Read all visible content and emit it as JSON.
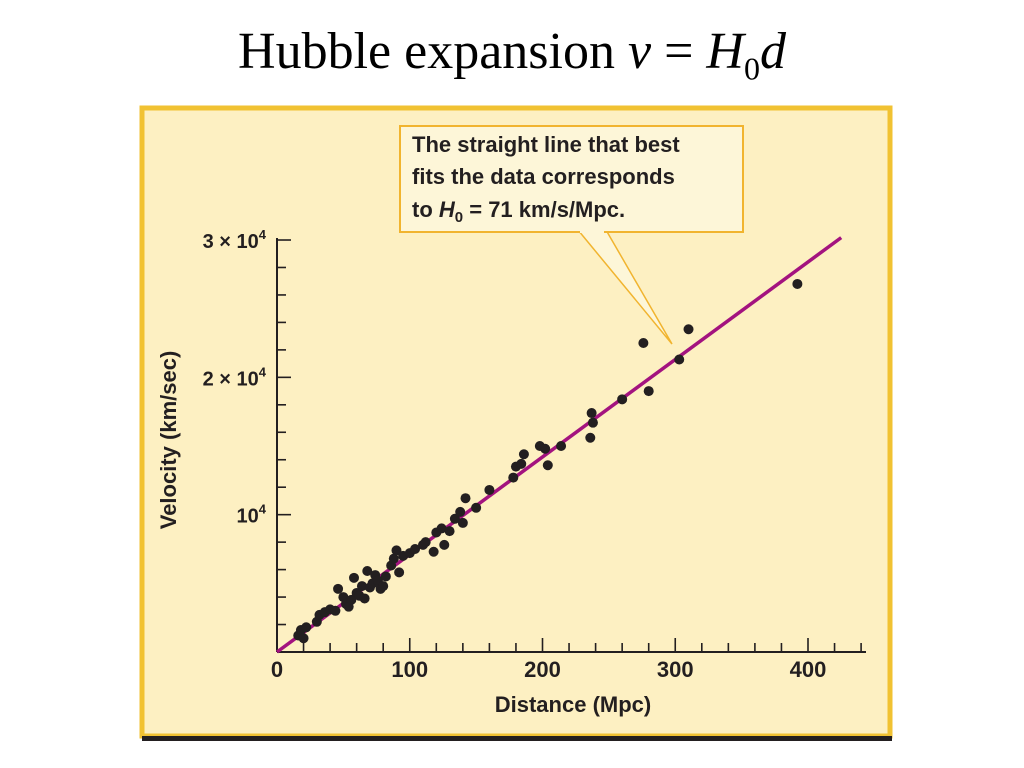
{
  "slide": {
    "title_prefix": "Hubble expansion ",
    "title_v": "v",
    "title_eq": " = ",
    "title_H": "H",
    "title_sub": "0",
    "title_d": "d"
  },
  "colors": {
    "panel_fill": "#fdf0c2",
    "panel_border": "#f1c232",
    "fit_line": "#a3137f",
    "points": "#231f20",
    "callout_fill": "#fdf6d8",
    "callout_border": "#f1b42f"
  },
  "callout": {
    "line1": "The straight line that best",
    "line2": "fits the data corresponds",
    "line3_prefix": "to ",
    "line3_H": "H",
    "line3_sub": "0",
    "line3_suffix": " = 71 km/s/Mpc."
  },
  "chart_data": {
    "type": "scatter",
    "xlabel": "Distance (Mpc)",
    "ylabel": "Velocity (km/sec)",
    "xlim": [
      0,
      440
    ],
    "ylim": [
      0,
      30000
    ],
    "x_ticks": [
      {
        "value": 0,
        "label": "0"
      },
      {
        "value": 100,
        "label": "100"
      },
      {
        "value": 200,
        "label": "200"
      },
      {
        "value": 300,
        "label": "300"
      },
      {
        "value": 400,
        "label": "400"
      }
    ],
    "y_ticks": [
      {
        "value": 10000,
        "mantissa": "",
        "base": "10",
        "exp": "4"
      },
      {
        "value": 20000,
        "mantissa": "2 × ",
        "base": "10",
        "exp": "4"
      },
      {
        "value": 30000,
        "mantissa": "3 × ",
        "base": "10",
        "exp": "4"
      }
    ],
    "fit_line": {
      "slope": 71,
      "x_start": 0,
      "x_end": 425
    },
    "points": [
      [
        16,
        1200
      ],
      [
        18,
        1600
      ],
      [
        20,
        1000
      ],
      [
        22,
        1800
      ],
      [
        30,
        2200
      ],
      [
        32,
        2700
      ],
      [
        36,
        2900
      ],
      [
        40,
        3100
      ],
      [
        44,
        3000
      ],
      [
        46,
        4600
      ],
      [
        50,
        4000
      ],
      [
        52,
        3500
      ],
      [
        54,
        3300
      ],
      [
        56,
        3800
      ],
      [
        58,
        5400
      ],
      [
        60,
        4300
      ],
      [
        62,
        4100
      ],
      [
        64,
        4800
      ],
      [
        66,
        3900
      ],
      [
        68,
        5900
      ],
      [
        70,
        4700
      ],
      [
        72,
        5000
      ],
      [
        74,
        5600
      ],
      [
        76,
        5200
      ],
      [
        78,
        4600
      ],
      [
        80,
        4800
      ],
      [
        82,
        5500
      ],
      [
        86,
        6300
      ],
      [
        88,
        6800
      ],
      [
        90,
        7400
      ],
      [
        92,
        5800
      ],
      [
        95,
        7000
      ],
      [
        100,
        7200
      ],
      [
        104,
        7500
      ],
      [
        110,
        7800
      ],
      [
        112,
        8000
      ],
      [
        118,
        7300
      ],
      [
        120,
        8700
      ],
      [
        124,
        9000
      ],
      [
        126,
        7800
      ],
      [
        130,
        8800
      ],
      [
        134,
        9700
      ],
      [
        138,
        10200
      ],
      [
        140,
        9400
      ],
      [
        142,
        11200
      ],
      [
        150,
        10500
      ],
      [
        160,
        11800
      ],
      [
        178,
        12700
      ],
      [
        180,
        13500
      ],
      [
        184,
        13700
      ],
      [
        186,
        14400
      ],
      [
        198,
        15000
      ],
      [
        202,
        14800
      ],
      [
        204,
        13600
      ],
      [
        214,
        15000
      ],
      [
        236,
        15600
      ],
      [
        237,
        17400
      ],
      [
        238,
        16700
      ],
      [
        260,
        18400
      ],
      [
        276,
        22500
      ],
      [
        280,
        19000
      ],
      [
        303,
        21300
      ],
      [
        310,
        23500
      ],
      [
        392,
        26800
      ]
    ]
  }
}
